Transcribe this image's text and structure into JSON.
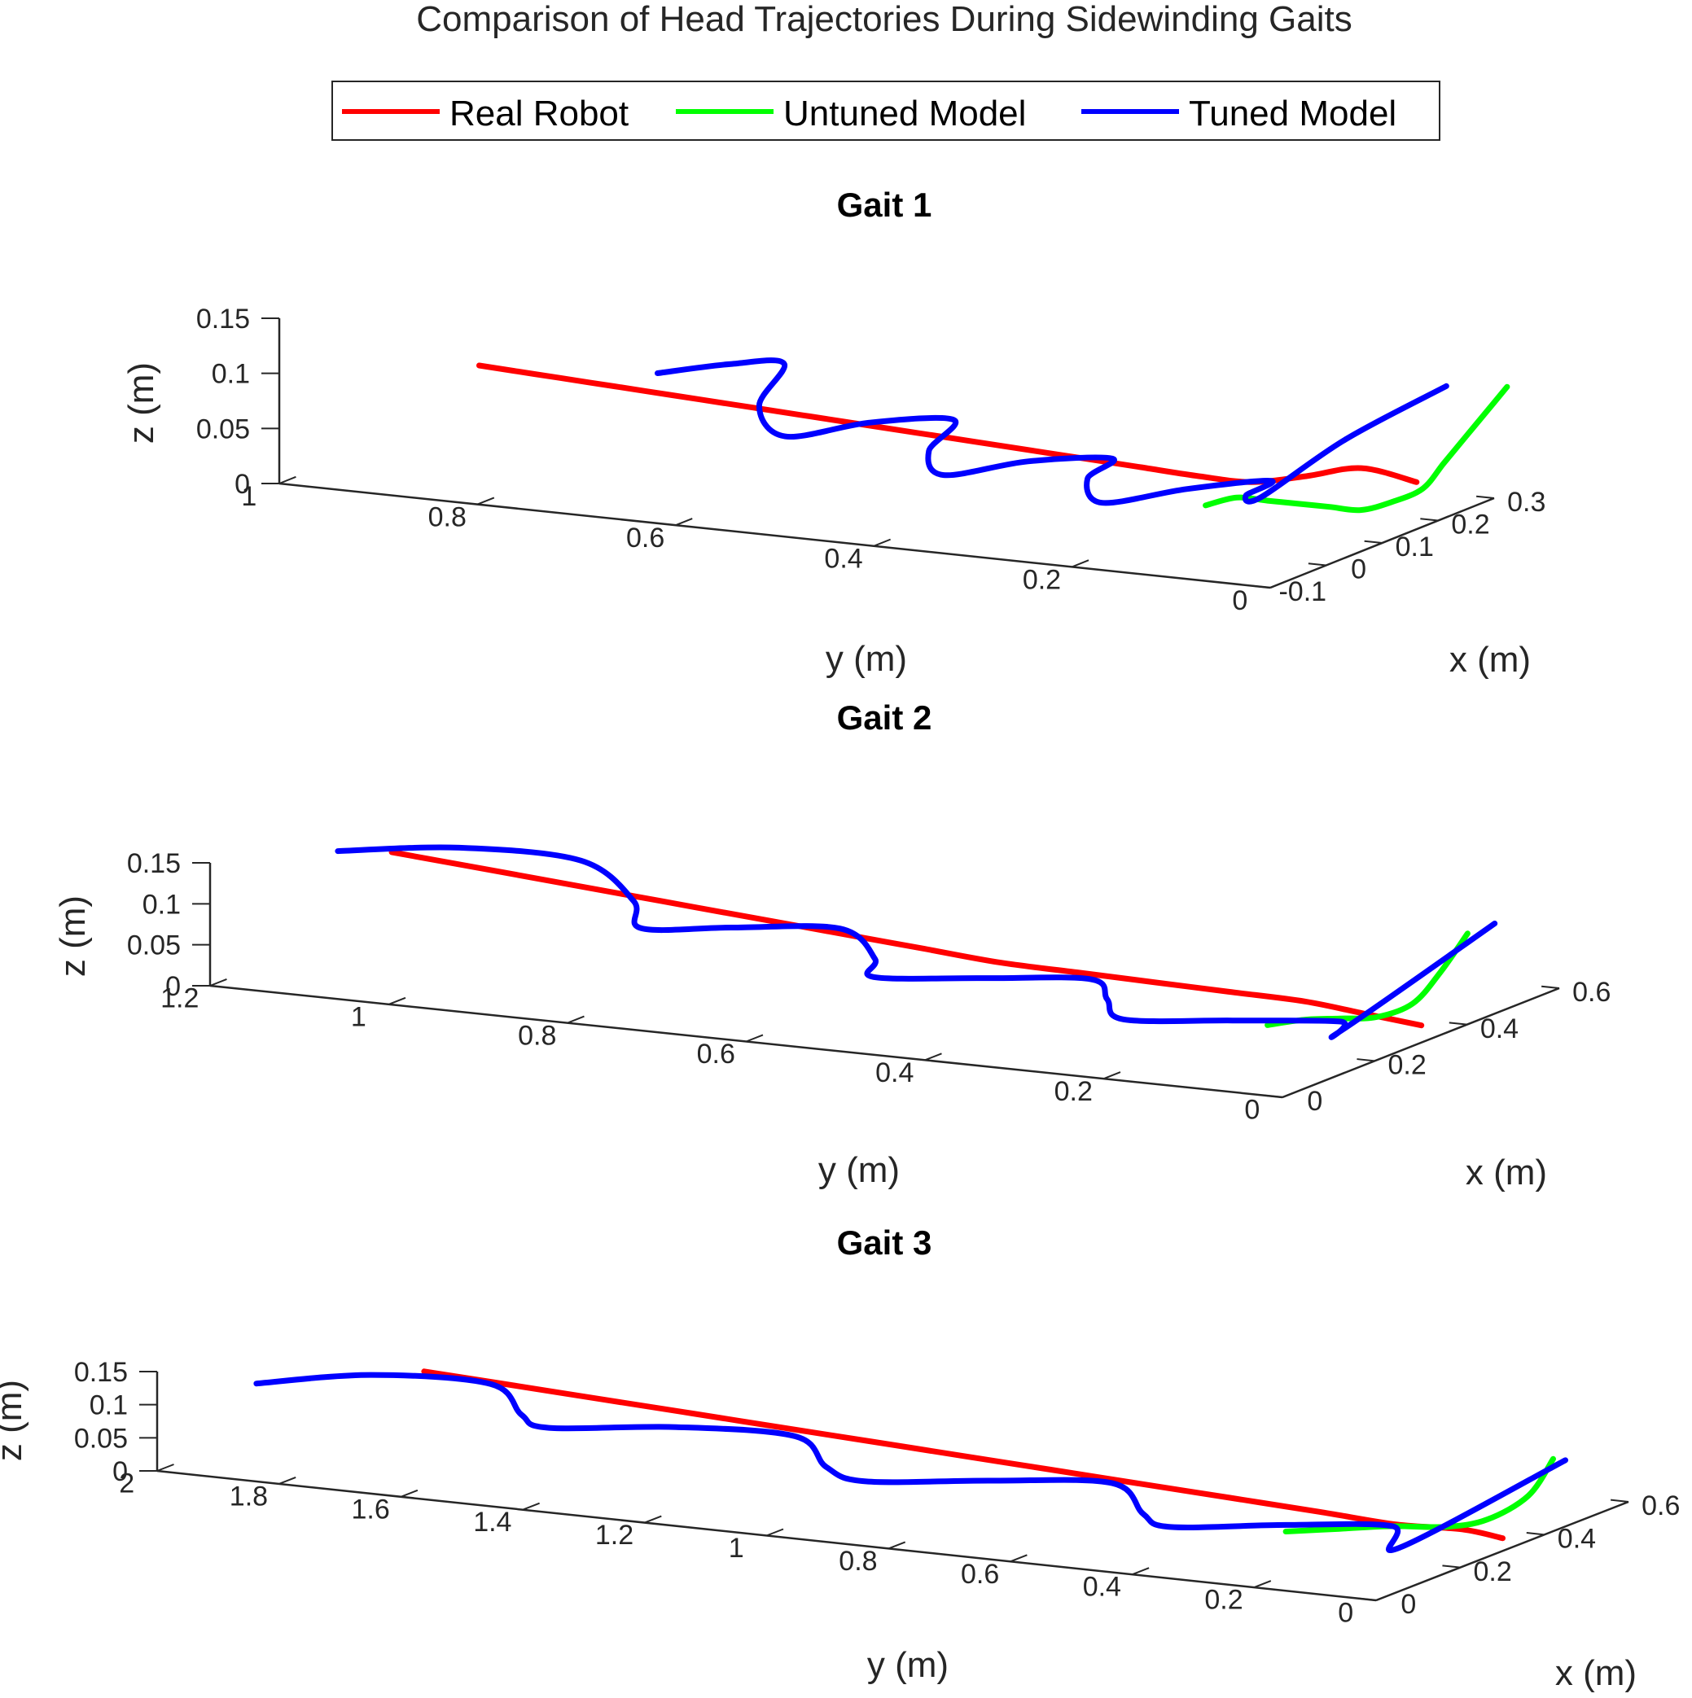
{
  "figure": {
    "title": "Comparison of Head Trajectories During Sidewinding Gaits"
  },
  "legend": {
    "placement": "top-center",
    "entries": [
      {
        "name": "Real Robot",
        "color": "#ff0000"
      },
      {
        "name": "Untuned Model",
        "color": "#00ff00"
      },
      {
        "name": "Tuned Model",
        "color": "#0000ff"
      }
    ]
  },
  "chart_data": [
    {
      "type": "line",
      "title": "Gait 1",
      "xlabel": "x (m)",
      "ylabel": "y (m)",
      "zlabel": "z (m)",
      "xlim": [
        -0.1,
        0.3
      ],
      "ylim": [
        0,
        1
      ],
      "zlim": [
        0,
        0.15
      ],
      "xticks": [
        -0.1,
        0,
        0.1,
        0.2,
        0.3
      ],
      "yticks": [
        0,
        0.2,
        0.4,
        0.6,
        0.8,
        1
      ],
      "zticks": [
        0,
        0.05,
        0.1,
        0.15
      ],
      "xtick_labels": [
        "-0.1",
        "0",
        "0.1",
        "0.2",
        "0.3"
      ],
      "ytick_labels": [
        "0",
        "0.2",
        "0.4",
        "0.6",
        "0.8",
        "1"
      ],
      "ztick_labels": [
        "0",
        "0.05",
        "0.1",
        "0.15"
      ],
      "series": [
        {
          "name": "Real Robot",
          "color": "#ff0000",
          "x": [
            0.08,
            0.09,
            0.1,
            0.11,
            0.12,
            0.13,
            0.14,
            0.15,
            0.16,
            0.17,
            0.18,
            0.19,
            0.2,
            0.21,
            0.22,
            0.23,
            0.24,
            0.25
          ],
          "y": [
            0.9,
            0.85,
            0.8,
            0.75,
            0.7,
            0.65,
            0.6,
            0.55,
            0.5,
            0.45,
            0.4,
            0.35,
            0.3,
            0.25,
            0.2,
            0.15,
            0.1,
            0.05
          ],
          "z": [
            0.08,
            0.075,
            0.07,
            0.065,
            0.06,
            0.055,
            0.05,
            0.045,
            0.04,
            0.035,
            0.03,
            0.025,
            0.02,
            0.015,
            0.012,
            0.02,
            0.03,
            0.02
          ]
        },
        {
          "name": "Untuned Model",
          "color": "#00ff00",
          "x": [
            0.05,
            0.07,
            0.09,
            0.11,
            0.13,
            0.15,
            0.17,
            0.19,
            0.21,
            0.23,
            0.25,
            0.27
          ],
          "y": [
            0.15,
            0.13,
            0.11,
            0.09,
            0.07,
            0.05,
            0.03,
            0.01,
            0.0,
            -0.01,
            -0.02,
            -0.03
          ],
          "z": [
            0.03,
            0.035,
            0.03,
            0.025,
            0.02,
            0.015,
            0.02,
            0.03,
            0.05,
            0.07,
            0.09,
            0.11
          ]
        },
        {
          "name": "Tuned Model",
          "color": "#0000ff",
          "x": [
            0.08,
            0.14,
            0.2,
            0.12,
            0.06,
            0.14,
            0.22,
            0.14,
            0.06,
            0.14,
            0.22,
            0.14,
            0.06,
            0.14,
            0.22,
            0.14,
            0.06,
            0.14,
            0.25
          ],
          "y": [
            0.72,
            0.68,
            0.66,
            0.64,
            0.58,
            0.54,
            0.5,
            0.48,
            0.42,
            0.38,
            0.34,
            0.32,
            0.26,
            0.22,
            0.18,
            0.16,
            0.1,
            0.06,
            0.02
          ],
          "z": [
            0.09,
            0.09,
            0.08,
            0.06,
            0.05,
            0.05,
            0.04,
            0.03,
            0.03,
            0.03,
            0.02,
            0.02,
            0.02,
            0.02,
            0.015,
            0.02,
            0.04,
            0.08,
            0.11
          ]
        }
      ]
    },
    {
      "type": "line",
      "title": "Gait 2",
      "xlabel": "x (m)",
      "ylabel": "y (m)",
      "zlabel": "z (m)",
      "xlim": [
        0,
        0.6
      ],
      "ylim": [
        0,
        1.2
      ],
      "zlim": [
        0,
        0.15
      ],
      "xticks": [
        0,
        0.2,
        0.4,
        0.6
      ],
      "yticks": [
        0,
        0.2,
        0.4,
        0.6,
        0.8,
        1,
        1.2
      ],
      "zticks": [
        0,
        0.05,
        0.1,
        0.15
      ],
      "xtick_labels": [
        "0",
        "0.2",
        "0.4",
        "0.6"
      ],
      "ytick_labels": [
        "0",
        "0.2",
        "0.4",
        "0.6",
        "0.8",
        "1",
        "1.2"
      ],
      "ztick_labels": [
        "0",
        "0.05",
        "0.1",
        "0.15"
      ],
      "series": [
        {
          "name": "Real Robot",
          "color": "#ff0000",
          "x": [
            0.2,
            0.21,
            0.22,
            0.23,
            0.24,
            0.25,
            0.26,
            0.27,
            0.28,
            0.29,
            0.3,
            0.31,
            0.32,
            0.33,
            0.34
          ],
          "y": [
            1.1,
            1.02,
            0.94,
            0.86,
            0.78,
            0.7,
            0.62,
            0.54,
            0.46,
            0.38,
            0.3,
            0.22,
            0.14,
            0.08,
            0.02
          ],
          "z": [
            0.13,
            0.12,
            0.11,
            0.1,
            0.09,
            0.08,
            0.07,
            0.06,
            0.05,
            0.045,
            0.04,
            0.035,
            0.03,
            0.02,
            0.01
          ]
        },
        {
          "name": "Untuned Model",
          "color": "#00ff00",
          "x": [
            0.2,
            0.24,
            0.28,
            0.32,
            0.36,
            0.4,
            0.44
          ],
          "y": [
            0.12,
            0.1,
            0.08,
            0.06,
            0.04,
            0.03,
            0.02
          ],
          "z": [
            0.03,
            0.03,
            0.025,
            0.02,
            0.03,
            0.06,
            0.1
          ]
        },
        {
          "name": "Tuned Model",
          "color": "#0000ff",
          "x": [
            0.18,
            0.25,
            0.32,
            0.24,
            0.16,
            0.24,
            0.32,
            0.24,
            0.16,
            0.24,
            0.32,
            0.24,
            0.16,
            0.24,
            0.32,
            0.24,
            0.46
          ],
          "y": [
            1.15,
            1.05,
            0.95,
            0.85,
            0.8,
            0.74,
            0.66,
            0.58,
            0.54,
            0.46,
            0.38,
            0.32,
            0.26,
            0.18,
            0.1,
            0.06,
            0.0
          ],
          "z": [
            0.13,
            0.13,
            0.11,
            0.09,
            0.08,
            0.07,
            0.06,
            0.05,
            0.05,
            0.04,
            0.03,
            0.03,
            0.03,
            0.02,
            0.01,
            0.02,
            0.11
          ]
        }
      ]
    },
    {
      "type": "line",
      "title": "Gait 3",
      "xlabel": "x (m)",
      "ylabel": "y (m)",
      "zlabel": "z (m)",
      "xlim": [
        0,
        0.6
      ],
      "ylim": [
        0,
        2
      ],
      "zlim": [
        0,
        0.15
      ],
      "xticks": [
        0,
        0.2,
        0.4,
        0.6
      ],
      "yticks": [
        0,
        0.2,
        0.4,
        0.6,
        0.8,
        1,
        1.2,
        1.4,
        1.6,
        1.8,
        2
      ],
      "zticks": [
        0,
        0.05,
        0.1,
        0.15
      ],
      "xtick_labels": [
        "0",
        "0.2",
        "0.4",
        "0.6"
      ],
      "ytick_labels": [
        "0",
        "0.2",
        "0.4",
        "0.6",
        "0.8",
        "1",
        "1.2",
        "1.4",
        "1.6",
        "1.8",
        "2"
      ],
      "ztick_labels": [
        "0",
        "0.05",
        "0.1",
        "0.15"
      ],
      "series": [
        {
          "name": "Real Robot",
          "color": "#ff0000",
          "x": [
            0.2,
            0.21,
            0.22,
            0.23,
            0.24,
            0.25,
            0.26,
            0.27,
            0.28,
            0.29,
            0.3,
            0.31,
            0.32,
            0.33
          ],
          "y": [
            1.7,
            1.56,
            1.42,
            1.28,
            1.14,
            1.0,
            0.86,
            0.72,
            0.58,
            0.44,
            0.3,
            0.18,
            0.08,
            0.02
          ],
          "z": [
            0.13,
            0.12,
            0.11,
            0.1,
            0.09,
            0.08,
            0.07,
            0.06,
            0.05,
            0.04,
            0.03,
            0.02,
            0.02,
            0.01
          ]
        },
        {
          "name": "Untuned Model",
          "color": "#00ff00",
          "x": [
            0.22,
            0.26,
            0.3,
            0.34,
            0.38,
            0.42,
            0.45
          ],
          "y": [
            0.3,
            0.24,
            0.18,
            0.12,
            0.08,
            0.04,
            0.02
          ],
          "z": [
            0.02,
            0.02,
            0.02,
            0.015,
            0.02,
            0.05,
            0.1
          ]
        },
        {
          "name": "Tuned Model",
          "color": "#0000ff",
          "x": [
            0.12,
            0.22,
            0.3,
            0.2,
            0.12,
            0.22,
            0.3,
            0.2,
            0.12,
            0.22,
            0.3,
            0.2,
            0.12,
            0.22,
            0.3,
            0.2,
            0.45
          ],
          "y": [
            1.92,
            1.8,
            1.66,
            1.54,
            1.44,
            1.3,
            1.16,
            1.04,
            0.92,
            0.78,
            0.64,
            0.52,
            0.42,
            0.3,
            0.18,
            0.1,
            0.0
          ],
          "z": [
            0.11,
            0.11,
            0.09,
            0.08,
            0.09,
            0.08,
            0.06,
            0.05,
            0.06,
            0.05,
            0.04,
            0.03,
            0.04,
            0.03,
            0.02,
            0.02,
            0.1
          ]
        }
      ]
    }
  ]
}
